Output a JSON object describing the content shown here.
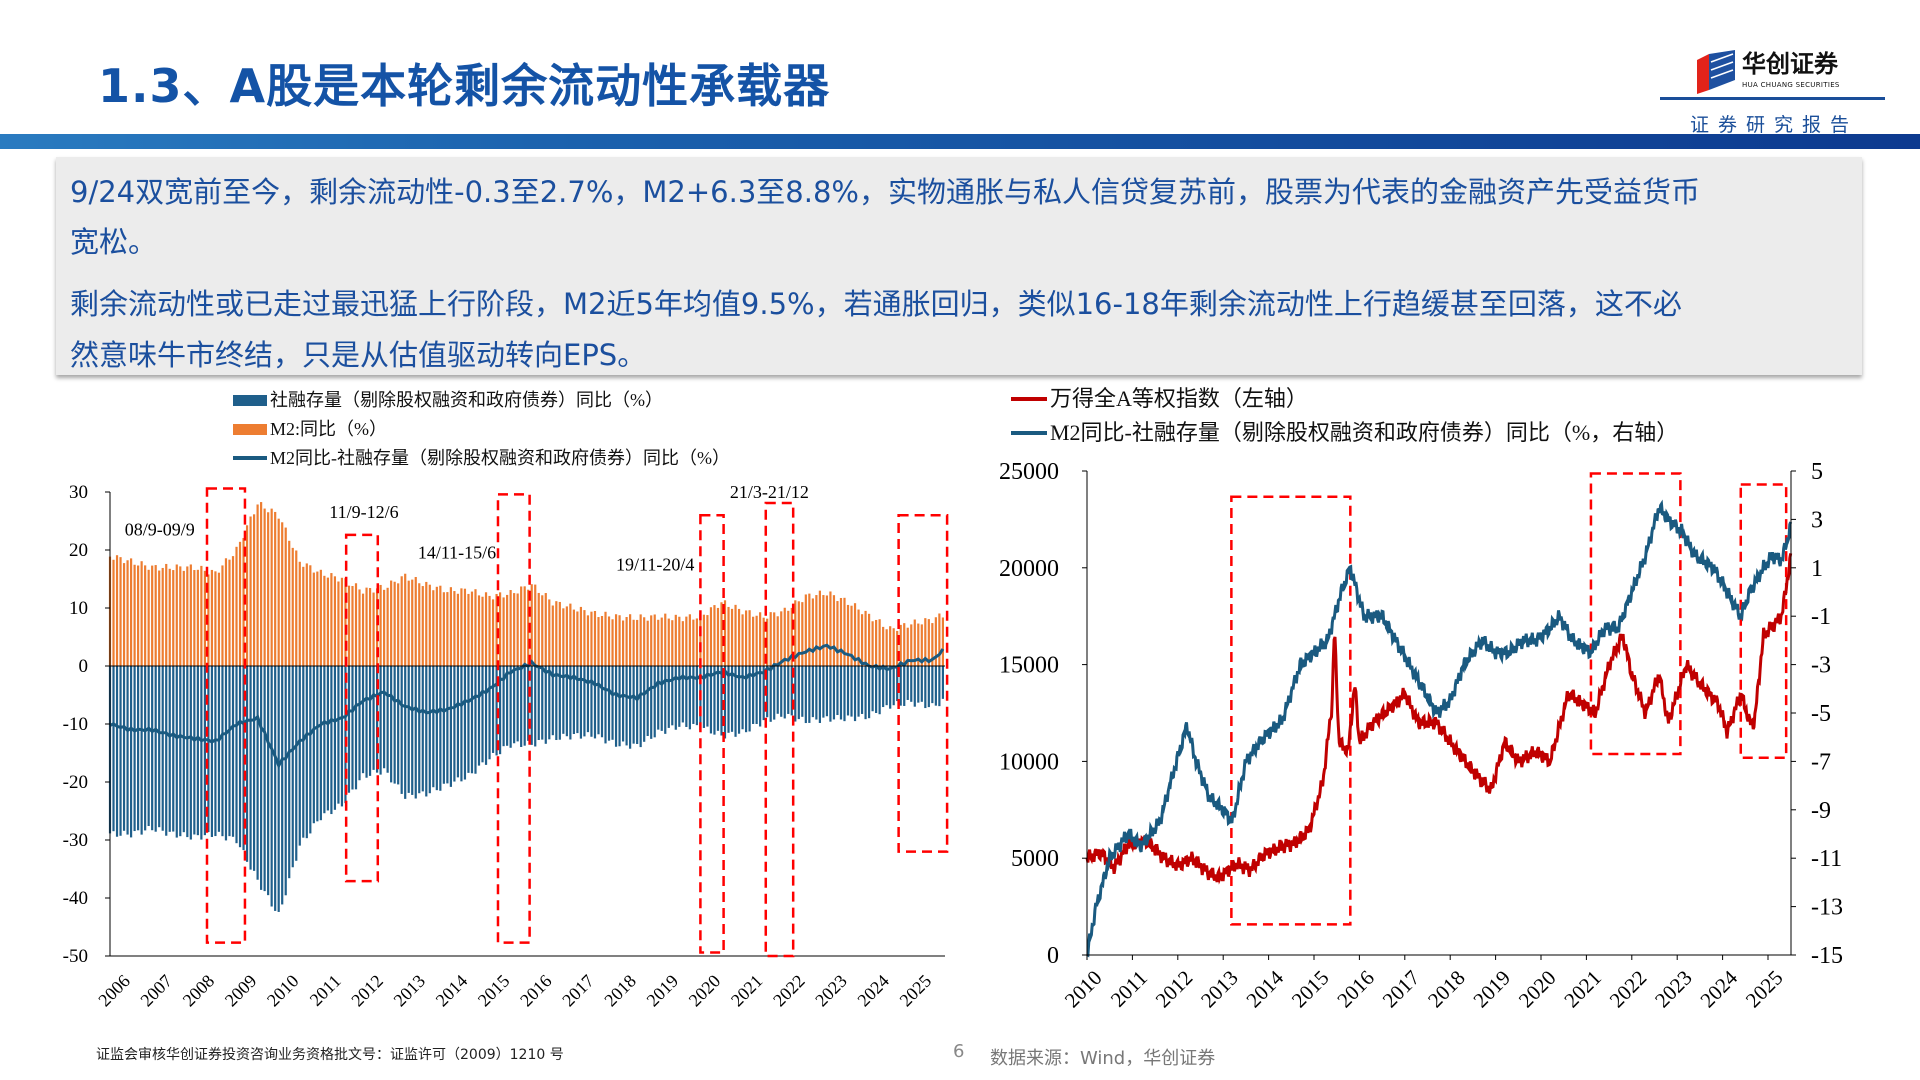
{
  "header": {
    "title": "1.3、A股是本轮剩余流动性承载器",
    "logo_cn": "华创证券",
    "logo_en": "HUA CHUANG SECURITIES",
    "report_label": "证券研究报告"
  },
  "summary": {
    "lines": [
      "9/24双宽前至今，剩余流动性-0.3至2.7%，M2+6.3至8.8%，实物通胀与私人信贷复苏前，股票为代表的金融资产先受益货币",
      "宽松。",
      "剩余流动性或已走过最迅猛上行阶段，M2近5年均值9.5%，若通胀回归，类似16-18年剩余流动性上行趋缓甚至回落，这不必",
      "然意味牛市终结，只是从估值驱动转向EPS。"
    ]
  },
  "colors": {
    "title": "#1453a6",
    "m2_bar": "#ed7d31",
    "tsf_bar": "#1f5f8b",
    "spread_line": "#1a5a80",
    "index_line": "#c00000",
    "highlight": "#ff0000"
  },
  "chart_data": [
    {
      "type": "bar",
      "subtype": "bar+line",
      "legend": [
        "社融存量（剔除股权融资和政府债券）同比（%）",
        "M2:同比（%）",
        "M2同比-社融存量（剔除股权融资和政府债券）同比（%）"
      ],
      "legend_placement": "top",
      "ylim": [
        -50,
        30
      ],
      "yticks": [
        "30",
        "20",
        "10",
        "0",
        "-10",
        "-20",
        "-30",
        "-40",
        "-50"
      ],
      "xlim": [
        2006,
        2025.8
      ],
      "xticks": [
        "2006",
        "2007",
        "2008",
        "2009",
        "2010",
        "2011",
        "2012",
        "2013",
        "2014",
        "2015",
        "2016",
        "2017",
        "2018",
        "2019",
        "2020",
        "2021",
        "2022",
        "2023",
        "2024",
        "2025"
      ],
      "grid": false,
      "x": [
        2006.0,
        2006.5,
        2007.0,
        2007.5,
        2008.0,
        2008.5,
        2009.0,
        2009.5,
        2010.0,
        2010.5,
        2011.0,
        2011.5,
        2012.0,
        2012.5,
        2013.0,
        2013.5,
        2014.0,
        2014.5,
        2015.0,
        2015.5,
        2016.0,
        2016.5,
        2017.0,
        2017.5,
        2018.0,
        2018.5,
        2019.0,
        2019.5,
        2020.0,
        2020.5,
        2021.0,
        2021.5,
        2022.0,
        2022.5,
        2023.0,
        2023.5,
        2024.0,
        2024.5,
        2025.0,
        2025.5,
        2025.75
      ],
      "series": [
        {
          "name": "社融存量（剔除股权融资和政府债券）同比（%）",
          "kind": "bar",
          "values": [
            -29,
            -29,
            -28,
            -29,
            -29.5,
            -29,
            -30,
            -37,
            -43,
            -31,
            -26,
            -24,
            -19,
            -18,
            -22.5,
            -22,
            -20.5,
            -19,
            -16,
            -13.5,
            -13.5,
            -12.5,
            -12,
            -12,
            -13.5,
            -13.8,
            -11.5,
            -10.3,
            -10.5,
            -12,
            -11.5,
            -9.5,
            -8.5,
            -9.5,
            -9.1,
            -9,
            -8.7,
            -6.8,
            -6.3,
            -7,
            -6.1
          ]
        },
        {
          "name": "M2:同比（%）",
          "kind": "bar",
          "values": [
            19,
            18,
            17,
            17,
            17,
            16,
            20,
            28,
            26,
            18,
            16,
            15,
            13,
            13.5,
            15.5,
            14,
            13,
            13,
            12,
            12.5,
            14,
            11,
            10,
            9,
            8.5,
            8.3,
            8.5,
            8.3,
            8.5,
            11,
            9.5,
            8.5,
            9.5,
            12,
            12.6,
            11,
            8.7,
            6.3,
            7.3,
            8,
            8.8
          ]
        },
        {
          "name": "M2同比-社融存量（剔除股权融资和政府债券）同比（%）",
          "kind": "line",
          "values": [
            -10,
            -11,
            -11,
            -12,
            -12.5,
            -13,
            -10,
            -9,
            -17,
            -13,
            -10,
            -9,
            -6,
            -4.5,
            -7,
            -8,
            -7.5,
            -6,
            -4,
            -1,
            0.5,
            -1.5,
            -2,
            -3,
            -5,
            -5.5,
            -3,
            -2,
            -2,
            -1,
            -2,
            -1,
            1,
            2.5,
            3.5,
            2,
            0,
            -0.5,
            1,
            1,
            2.7
          ]
        }
      ],
      "highlights": [
        {
          "label": "08/9-09/9",
          "x": [
            2008.3,
            2009.2
          ],
          "y": [
            -47.7,
            30.6
          ]
        },
        {
          "label": "11/9-12/6",
          "x": [
            2011.6,
            2012.35
          ],
          "y": [
            -37.1,
            22.6
          ]
        },
        {
          "label": "14/11-15/6",
          "x": [
            2015.2,
            2015.95
          ],
          "y": [
            -47.7,
            29.6
          ]
        },
        {
          "label": "19/11-20/4",
          "x": [
            2020.0,
            2020.55
          ],
          "y": [
            -49.4,
            26
          ]
        },
        {
          "label": "21/3-21/12",
          "x": [
            2021.55,
            2022.2
          ],
          "y": [
            -50,
            28.1
          ]
        },
        {
          "label": "",
          "x": [
            2024.7,
            2025.85
          ],
          "y": [
            -32,
            26
          ]
        }
      ]
    },
    {
      "type": "line",
      "legend": [
        "万得全A等权指数（左轴）",
        "M2同比-社融存量（剔除股权融资和政府债券）同比（%，右轴）"
      ],
      "legend_placement": "top-left",
      "ylim_left": [
        0,
        25000
      ],
      "ylim_right": [
        -15,
        5
      ],
      "yticks_left": [
        "25000",
        "20000",
        "15000",
        "10000",
        "5000",
        "0"
      ],
      "yticks_right": [
        "5",
        "3",
        "1",
        "-1",
        "-3",
        "-5",
        "-7",
        "-9",
        "-11",
        "-13",
        "-15"
      ],
      "xticks": [
        "2010",
        "2011",
        "2012",
        "2013",
        "2014",
        "2015",
        "2016",
        "2017",
        "2018",
        "2019",
        "2020",
        "2021",
        "2022",
        "2023",
        "2024",
        "2025"
      ],
      "grid": false,
      "series": [
        {
          "name": "万得全A等权指数（左轴）",
          "axis": "left",
          "x": [
            2010.0,
            2010.3,
            2010.6,
            2010.9,
            2011.3,
            2011.7,
            2012.0,
            2012.3,
            2012.7,
            2012.9,
            2013.3,
            2013.6,
            2013.9,
            2014.3,
            2014.6,
            2014.9,
            2015.2,
            2015.4,
            2015.45,
            2015.55,
            2015.75,
            2015.9,
            2016.0,
            2016.3,
            2016.8,
            2017.0,
            2017.3,
            2017.7,
            2018.0,
            2018.5,
            2018.9,
            2019.2,
            2019.5,
            2019.9,
            2020.2,
            2020.6,
            2020.9,
            2021.2,
            2021.5,
            2021.8,
            2022.0,
            2022.3,
            2022.6,
            2022.8,
            2023.2,
            2023.5,
            2023.9,
            2024.1,
            2024.4,
            2024.6,
            2024.7,
            2024.9,
            2025.1,
            2025.3,
            2025.5
          ],
          "values": [
            5000,
            5300,
            4500,
            5700,
            5900,
            5000,
            4600,
            5000,
            4200,
            4000,
            4700,
            4400,
            5200,
            5600,
            5800,
            6500,
            9000,
            13000,
            17000,
            11000,
            10500,
            14000,
            11000,
            12000,
            13000,
            13500,
            12000,
            12000,
            11000,
            9500,
            8500,
            11000,
            10000,
            10500,
            10000,
            13500,
            13000,
            12500,
            15000,
            16500,
            14500,
            12500,
            14500,
            12000,
            15000,
            14000,
            13000,
            11500,
            13500,
            12000,
            12000,
            16500,
            17000,
            17500,
            20500
          ]
        },
        {
          "name": "M2同比-社融存量（剔除股权融资和政府债券）同比（%，右轴）",
          "axis": "right",
          "x": [
            2010.0,
            2010.2,
            2010.5,
            2010.9,
            2011.2,
            2011.6,
            2011.9,
            2012.2,
            2012.4,
            2012.7,
            2013.0,
            2013.2,
            2013.5,
            2013.9,
            2014.3,
            2014.7,
            2015.0,
            2015.3,
            2015.6,
            2015.8,
            2016.1,
            2016.5,
            2016.8,
            2017.1,
            2017.4,
            2017.7,
            2018.0,
            2018.3,
            2018.7,
            2019.0,
            2019.3,
            2019.6,
            2019.9,
            2020.2,
            2020.4,
            2020.7,
            2021.1,
            2021.4,
            2021.7,
            2022.0,
            2022.3,
            2022.6,
            2022.8,
            2023.1,
            2023.4,
            2023.8,
            2024.1,
            2024.4,
            2024.6,
            2024.9,
            2025.1,
            2025.3,
            2025.5
          ],
          "values": [
            -15,
            -13,
            -11,
            -10,
            -10.5,
            -9.5,
            -7.5,
            -5.5,
            -7,
            -8.5,
            -9,
            -9.5,
            -7,
            -6,
            -5.3,
            -3,
            -2.5,
            -2,
            0,
            1,
            -1,
            -1,
            -2,
            -3,
            -4,
            -5,
            -4.5,
            -3,
            -2,
            -2.5,
            -2.5,
            -2,
            -2,
            -1.5,
            -1,
            -2,
            -2.5,
            -1.5,
            -1.5,
            0,
            1.5,
            3.5,
            3,
            2.5,
            1.5,
            1,
            0,
            -1,
            0,
            1,
            1.5,
            1.3,
            2.7
          ]
        }
      ],
      "highlights": [
        {
          "x": [
            2013.18,
            2015.8
          ],
          "y_left": [
            1580,
            23670
          ]
        },
        {
          "x": [
            2021.1,
            2023.07
          ],
          "y_left": [
            10380,
            24870
          ]
        },
        {
          "x": [
            2024.4,
            2025.4
          ],
          "y_left": [
            10190,
            24300
          ]
        }
      ]
    }
  ],
  "footer": {
    "license": "证监会审核华创证券投资咨询业务资格批文号：证监许可（2009）1210 号",
    "page": "6",
    "source": "数据来源：Wind，华创证券"
  }
}
